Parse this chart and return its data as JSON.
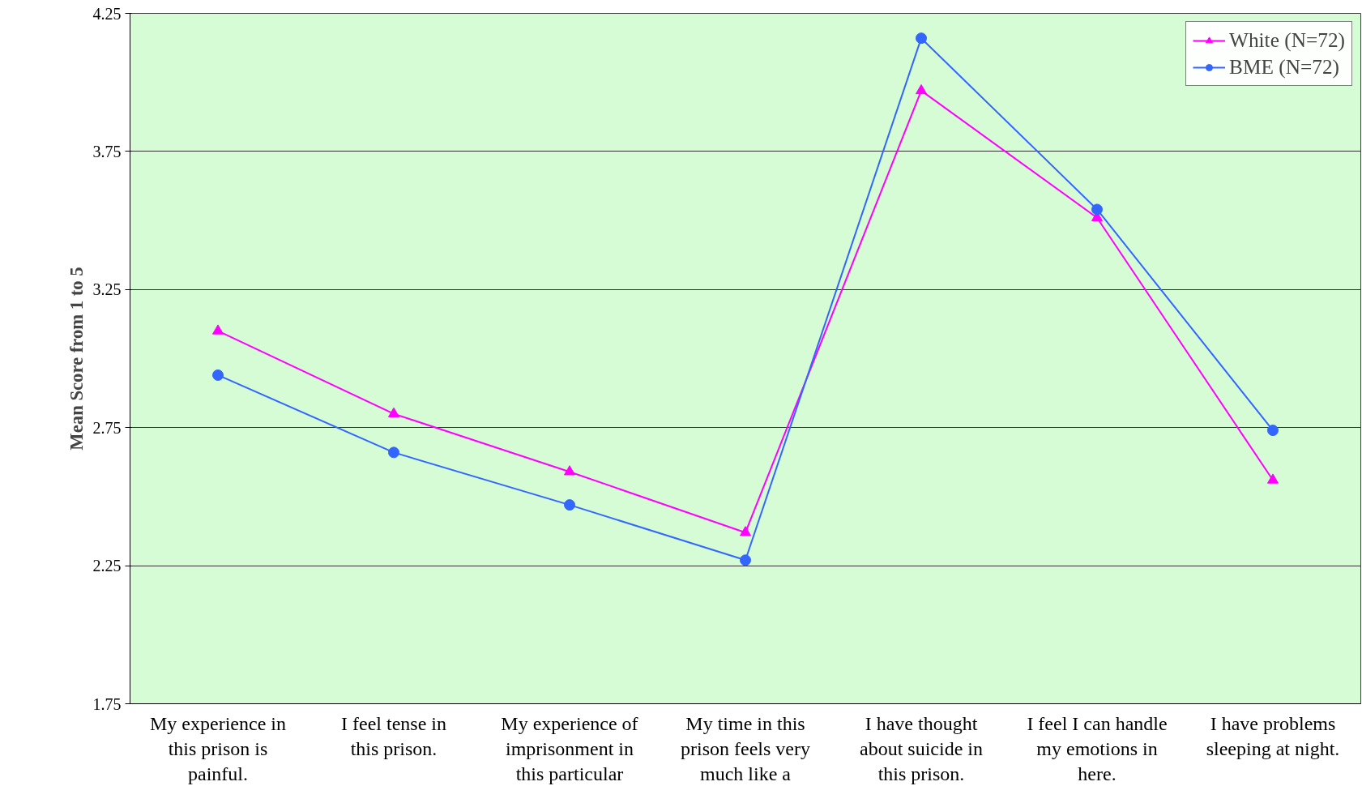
{
  "chart_data": {
    "type": "line",
    "ylabel": "Mean Score from 1 to 5",
    "categories": [
      "My experience in this prison is painful.",
      "I feel tense in this prison.",
      "My experience of imprisonment in this particular",
      "My time in this prison feels very much like a",
      "I have thought about suicide in this prison.",
      "I feel I can handle my emotions in here.",
      "I have problems sleeping at night."
    ],
    "series": [
      {
        "name": "White (N=72)",
        "color": "#ff00ff",
        "marker": "triangle",
        "values": [
          3.1,
          2.8,
          2.59,
          2.37,
          3.97,
          3.51,
          2.56
        ]
      },
      {
        "name": "BME (N=72)",
        "color": "#3366ff",
        "marker": "circle",
        "values": [
          2.94,
          2.66,
          2.47,
          2.27,
          4.16,
          3.54,
          2.74
        ]
      }
    ],
    "ylim": [
      1.75,
      4.25
    ],
    "yticks": [
      1.75,
      2.25,
      2.75,
      3.25,
      3.75,
      4.25
    ],
    "grid": "y",
    "legend": "top right",
    "line_style": "solid"
  }
}
